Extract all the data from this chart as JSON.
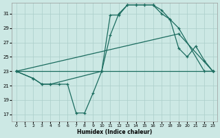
{
  "background_color": "#cce8e4",
  "grid_color": "#aacec9",
  "line_color": "#1a6b5e",
  "xlabel": "Humidex (Indice chaleur)",
  "xlim": [
    -0.5,
    23.5
  ],
  "ylim": [
    16.0,
    32.5
  ],
  "xticks": [
    0,
    1,
    2,
    3,
    4,
    5,
    6,
    7,
    8,
    9,
    10,
    11,
    12,
    13,
    14,
    15,
    16,
    17,
    18,
    19,
    20,
    21,
    22,
    23
  ],
  "yticks": [
    17,
    19,
    21,
    23,
    25,
    27,
    29,
    31
  ],
  "lines": [
    {
      "x": [
        0,
        2,
        3,
        4,
        5,
        6,
        7,
        8,
        9,
        10,
        11,
        12,
        13,
        14,
        15,
        16,
        17,
        18,
        19,
        20,
        21,
        22,
        23
      ],
      "y": [
        23,
        22,
        21.2,
        21.2,
        21.2,
        21.2,
        17.2,
        17.2,
        20,
        23,
        30.8,
        30.8,
        32.2,
        32.2,
        32.2,
        32.2,
        31.5,
        30.2,
        26.2,
        25,
        26.5,
        24.5,
        23
      ]
    },
    {
      "x": [
        0,
        2,
        3,
        4,
        10,
        11,
        12,
        13,
        14,
        15,
        16,
        17,
        18,
        19,
        22,
        23
      ],
      "y": [
        23,
        22,
        21.2,
        21.2,
        23,
        28,
        31,
        32.2,
        32.2,
        32.2,
        32.2,
        31,
        30.2,
        29,
        23,
        23
      ]
    },
    {
      "x": [
        0,
        19,
        23
      ],
      "y": [
        23,
        28.2,
        23
      ]
    },
    {
      "x": [
        0,
        23
      ],
      "y": [
        23,
        23
      ]
    }
  ]
}
